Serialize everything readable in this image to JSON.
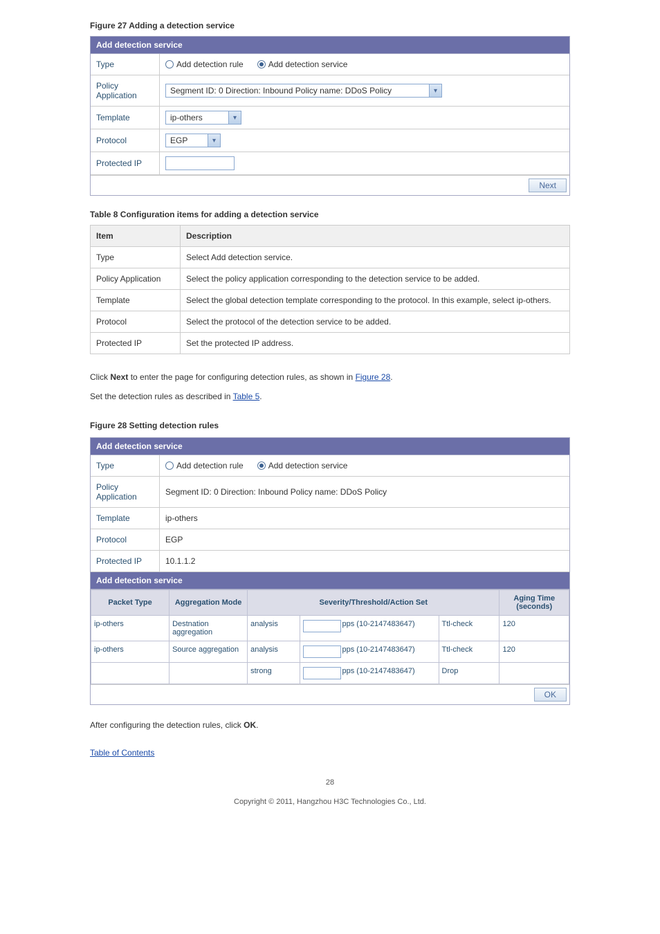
{
  "fig27": {
    "label": "Figure 27 Adding a detection service",
    "panel_title": "Add detection service",
    "rows": {
      "type": {
        "label": "Type",
        "opt1": "Add detection rule",
        "opt2": "Add detection service"
      },
      "policy": {
        "label": "Policy Application",
        "value": "Segment ID: 0  Direction: Inbound  Policy name: DDoS Policy"
      },
      "template": {
        "label": "Template",
        "value": "ip-others"
      },
      "protocol": {
        "label": "Protocol",
        "value": "EGP"
      },
      "protected": {
        "label": "Protected IP",
        "value": ""
      }
    },
    "next_btn": "Next"
  },
  "table8": {
    "caption": "Table 8 Configuration items for adding a detection service",
    "head_item": "Item",
    "head_desc": "Description",
    "rows": [
      {
        "item": "Type",
        "desc": "Select Add detection service."
      },
      {
        "item": "Policy Application",
        "desc": "Select the policy application corresponding to the detection service to be added."
      },
      {
        "item": "Template",
        "desc": "Select the global detection template corresponding to the protocol. In this example, select ip-others."
      },
      {
        "item": "Protocol",
        "desc": "Select the protocol of the detection service to be added."
      },
      {
        "item": "Protected IP",
        "desc": "Set the protected IP address."
      }
    ]
  },
  "midtext": {
    "line1_a": "Click ",
    "line1_b": "Next",
    "line1_c": " to enter the page for configuring detection rules, as shown in ",
    "line1_link": "Figure 28",
    "line1_d": ".",
    "line2_a": "Set the detection rules as described in ",
    "line2_link": "Table 5",
    "line2_b": "."
  },
  "fig28": {
    "label": "Figure 28 Setting detection rules",
    "panel_title": "Add detection service",
    "rows": {
      "type": {
        "label": "Type",
        "opt1": "Add detection rule",
        "opt2": "Add detection service"
      },
      "policy": {
        "label": "Policy Application",
        "value": "Segment ID: 0  Direction: Inbound  Policy name: DDoS Policy"
      },
      "template": {
        "label": "Template",
        "value": "ip-others"
      },
      "protocol": {
        "label": "Protocol",
        "value": "EGP"
      },
      "protected": {
        "label": "Protected IP",
        "value": "10.1.1.2"
      }
    },
    "sub_title": "Add detection service",
    "grid": {
      "heads": {
        "pkt": "Packet Type",
        "agg": "Aggregation Mode",
        "sev": "Severity/Threshold/Action Set",
        "age": "Aging Time (seconds)"
      },
      "rows": [
        {
          "pkt": "ip-others",
          "agg": "Destnation aggregation",
          "sev": "analysis",
          "pps": "pps  (10-2147483647)",
          "act": "Ttl-check",
          "age": "120"
        },
        {
          "pkt": "ip-others",
          "agg": "Source aggregation",
          "sev": "analysis",
          "pps": "pps  (10-2147483647)",
          "act": "Ttl-check",
          "age": "120"
        },
        {
          "pkt": "",
          "agg": "",
          "sev": "strong",
          "pps": "pps  (10-2147483647)",
          "act": "Drop",
          "age": ""
        }
      ]
    },
    "ok_btn": "OK"
  },
  "footer": {
    "text_a": "After configuring the detection rules, click ",
    "text_b": "OK",
    "text_c": ".",
    "toc": "Table of Contents",
    "page": "28",
    "copyright": "Copyright © 2011, Hangzhou H3C Technologies Co., Ltd."
  }
}
